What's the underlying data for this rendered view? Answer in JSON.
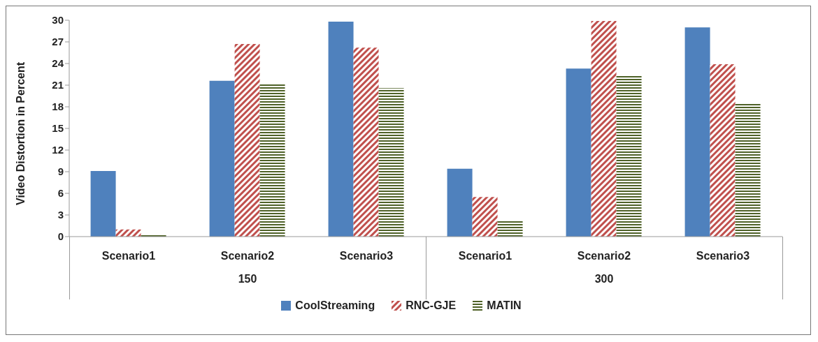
{
  "chart_data": {
    "type": "bar",
    "ylabel": "Video Distortion in Percent",
    "categories": [
      "Scenario1",
      "Scenario2",
      "Scenario3",
      "Scenario1",
      "Scenario2",
      "Scenario3"
    ],
    "series": [
      {
        "name": "CoolStreaming",
        "color": "#4f81bd",
        "values": [
          9.1,
          21.6,
          29.8,
          9.4,
          23.3,
          29.0
        ]
      },
      {
        "name": "RNC-GJE",
        "color": "#c0504d",
        "values": [
          1.0,
          26.7,
          26.2,
          5.5,
          29.9,
          23.9
        ]
      },
      {
        "name": "MATIN",
        "color": "#4f6228",
        "values": [
          0.3,
          21.2,
          20.6,
          2.2,
          22.4,
          18.4
        ]
      }
    ],
    "annotations": [
      "150",
      "300"
    ],
    "ylim": [
      0,
      30
    ],
    "yticks": [
      0,
      3,
      6,
      9,
      12,
      15,
      18,
      21,
      24,
      27,
      30
    ],
    "grid": false,
    "legend": "bottom"
  }
}
